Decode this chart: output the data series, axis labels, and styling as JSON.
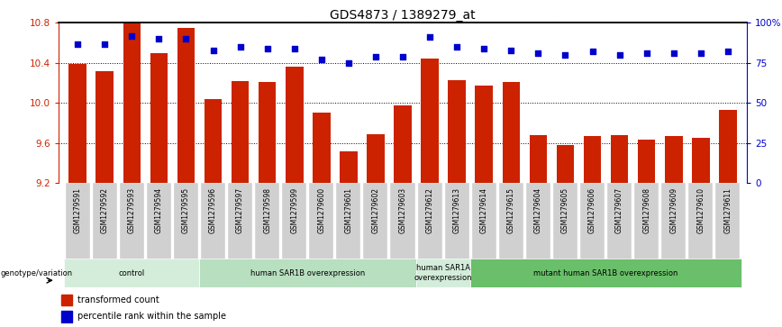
{
  "title": "GDS4873 / 1389279_at",
  "samples": [
    "GSM1279591",
    "GSM1279592",
    "GSM1279593",
    "GSM1279594",
    "GSM1279595",
    "GSM1279596",
    "GSM1279597",
    "GSM1279598",
    "GSM1279599",
    "GSM1279600",
    "GSM1279601",
    "GSM1279602",
    "GSM1279603",
    "GSM1279612",
    "GSM1279613",
    "GSM1279614",
    "GSM1279615",
    "GSM1279604",
    "GSM1279605",
    "GSM1279606",
    "GSM1279607",
    "GSM1279608",
    "GSM1279609",
    "GSM1279610",
    "GSM1279611"
  ],
  "bar_values": [
    10.39,
    10.32,
    10.8,
    10.5,
    10.75,
    10.04,
    10.22,
    10.21,
    10.36,
    9.9,
    9.52,
    9.69,
    9.98,
    10.44,
    10.23,
    10.17,
    10.21,
    9.68,
    9.58,
    9.67,
    9.68,
    9.63,
    9.67,
    9.65,
    9.93
  ],
  "percentile_values": [
    87,
    87,
    92,
    90,
    90,
    83,
    85,
    84,
    84,
    77,
    75,
    79,
    79,
    91,
    85,
    84,
    83,
    81,
    80,
    82,
    80,
    81,
    81,
    81,
    82
  ],
  "groups": [
    {
      "label": "control",
      "start": 0,
      "end": 5,
      "color": "#d4edda"
    },
    {
      "label": "human SAR1B overexpression",
      "start": 5,
      "end": 13,
      "color": "#b8dfc0"
    },
    {
      "label": "human SAR1A\noverexpression",
      "start": 13,
      "end": 15,
      "color": "#d4edda"
    },
    {
      "label": "mutant human SAR1B overexpression",
      "start": 15,
      "end": 25,
      "color": "#6abf6a"
    }
  ],
  "ylim": [
    9.2,
    10.8
  ],
  "yticks": [
    9.2,
    9.6,
    10.0,
    10.4,
    10.8
  ],
  "right_yticks": [
    0,
    25,
    50,
    75,
    100
  ],
  "bar_color": "#cc2200",
  "dot_color": "#0000cc",
  "background_color": "#ffffff",
  "tick_bg_color": "#d0d0d0"
}
